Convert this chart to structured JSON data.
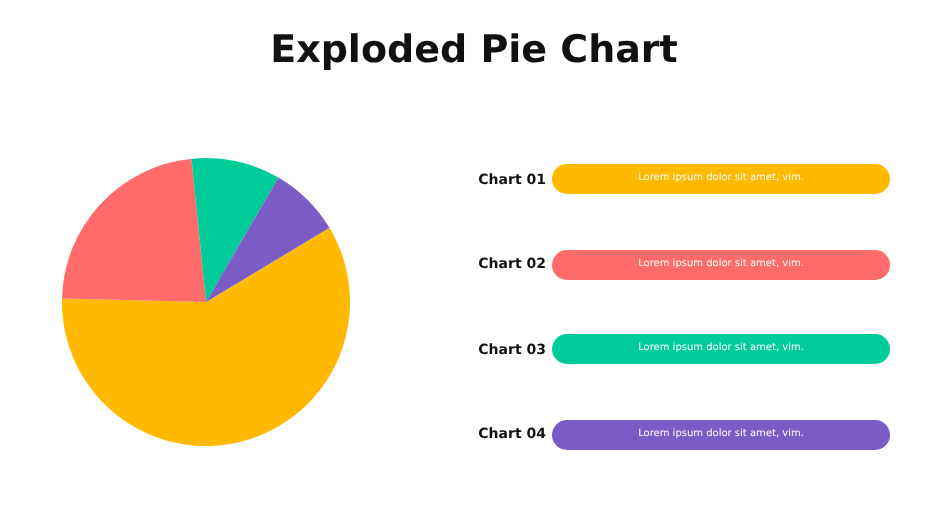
{
  "chart_data": {
    "type": "pie",
    "title": "Exploded Pie Chart",
    "categories": [
      "Chart 01",
      "Chart 02",
      "Chart 03",
      "Chart 04"
    ],
    "values": [
      59,
      23,
      10,
      8
    ],
    "colors": [
      "#ffb900",
      "#ff6b6b",
      "#00cc99",
      "#7b5cc7"
    ],
    "legend": "right",
    "annotations": [
      "Lorem ipsum dolor sit amet, vim.",
      "Lorem ipsum dolor sit amet, vim.",
      "Lorem ipsum dolor sit amet, vim.",
      "Lorem ipsum dolor sit amet, vim."
    ]
  }
}
